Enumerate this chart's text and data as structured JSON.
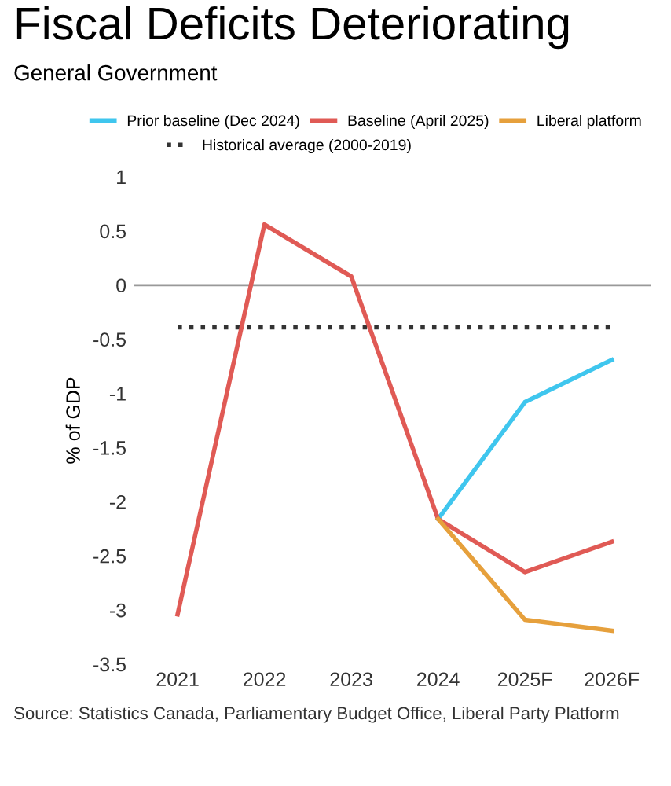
{
  "chart_data": {
    "type": "line",
    "title": "Fiscal Deficits Deteriorating",
    "subtitle": "General Government",
    "ylabel": "% of GDP",
    "categories": [
      "2021",
      "2022",
      "2023",
      "2024",
      "2025F",
      "2026F"
    ],
    "series": [
      {
        "name": "Prior baseline (Dec 2024)",
        "color": "#3fc6ee",
        "values": [
          null,
          null,
          null,
          -2.16,
          -1.08,
          -0.69
        ]
      },
      {
        "name": "Baseline (April 2025)",
        "color": "#e05a55",
        "values": [
          -3.04,
          0.56,
          0.08,
          -2.16,
          -2.65,
          -2.37
        ]
      },
      {
        "name": "Liberal platform",
        "color": "#e6a03c",
        "values": [
          null,
          null,
          null,
          -2.16,
          -3.09,
          -3.19
        ]
      }
    ],
    "ref_lines": [
      {
        "axis": "y",
        "value": 0,
        "color": "#999999",
        "line_style": "solid"
      },
      {
        "axis": "y",
        "value": -0.39,
        "label": "Historical average (2000-2019)",
        "color": "#333333",
        "line_style": "dotted"
      }
    ],
    "ylim": [
      -3.5,
      1
    ],
    "yticks": [
      1,
      0.5,
      0,
      -0.5,
      -1,
      -1.5,
      -2,
      -2.5,
      -3,
      -3.5
    ],
    "grid": false,
    "legend": "top",
    "marker": "none",
    "line_style": "solid",
    "annotations": [
      "Source: Statistics Canada, Parliamentary Budget Office, Liberal Party Platform"
    ]
  }
}
